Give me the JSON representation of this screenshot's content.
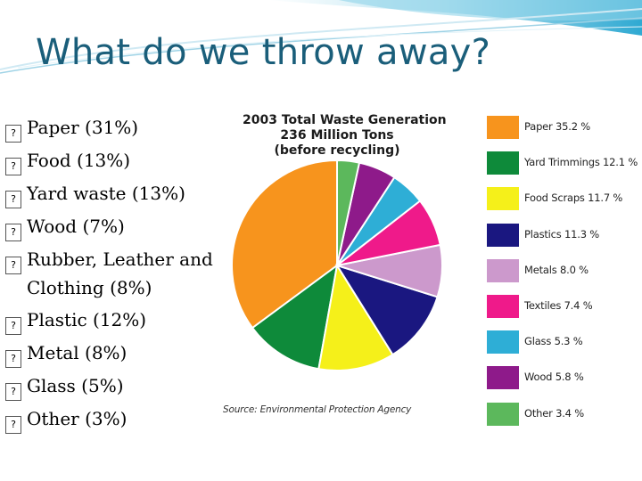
{
  "slide": {
    "title": "What do we throw away?",
    "bullet_glyph": "?",
    "bullets": [
      "Paper (31%)",
      "Food (13%)",
      "Yard waste (13%)",
      "Wood (7%)",
      "Rubber, Leather and Clothing (8%)",
      "Plastic (12%)",
      "Metal (8%)",
      "Glass (5%)",
      "Other (3%)"
    ]
  },
  "chart_data": {
    "type": "pie",
    "title_lines": [
      "2003 Total Waste Generation",
      "236 Million Tons",
      "(before recycling)"
    ],
    "source": "Source: Environmental Protection Agency",
    "legend_position": "right",
    "slices": [
      {
        "label": "Paper 35.2 %",
        "value": 35.2,
        "color": "#f7941d"
      },
      {
        "label": "Yard Trimmings 12.1 %",
        "value": 12.1,
        "color": "#0e8a3a"
      },
      {
        "label": "Food Scraps 11.7 %",
        "value": 11.7,
        "color": "#f5f01a"
      },
      {
        "label": "Plastics 11.3 %",
        "value": 11.3,
        "color": "#1a1780"
      },
      {
        "label": "Metals 8.0 %",
        "value": 8.0,
        "color": "#cc99cc"
      },
      {
        "label": "Textiles 7.4 %",
        "value": 7.4,
        "color": "#ef1a8a"
      },
      {
        "label": "Glass 5.3 %",
        "value": 5.3,
        "color": "#2eaed6"
      },
      {
        "label": "Wood 5.8 %",
        "value": 5.8,
        "color": "#8e1a8a"
      },
      {
        "label": "Other 3.4 %",
        "value": 3.4,
        "color": "#5cb85c"
      }
    ]
  }
}
